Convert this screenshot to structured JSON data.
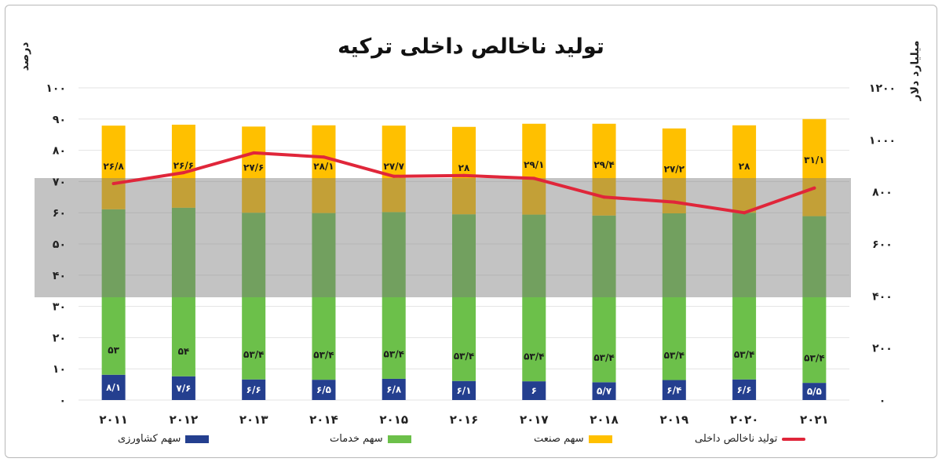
{
  "chart_data": {
    "type": "bar",
    "title": "تولید ناخالص داخلی ترکیه",
    "ylabel_left": "درصد",
    "ylabel_right": "میلیارد دلار",
    "categories": [
      "۲۰۱۱",
      "۲۰۱۲",
      "۲۰۱۳",
      "۲۰۱۴",
      "۲۰۱۵",
      "۲۰۱۶",
      "۲۰۱۷",
      "۲۰۱۸",
      "۲۰۱۹",
      "۲۰۲۰",
      "۲۰۲۱"
    ],
    "y_left_ticks": [
      "۰",
      "۱۰",
      "۲۰",
      "۳۰",
      "۴۰",
      "۵۰",
      "۶۰",
      "۷۰",
      "۸۰",
      "۹۰",
      "۱۰۰"
    ],
    "y_right_ticks": [
      "۰",
      "۲۰۰",
      "۴۰۰",
      "۶۰۰",
      "۸۰۰",
      "۱۰۰۰",
      "۱۲۰۰"
    ],
    "ylim_left": [
      0,
      100
    ],
    "ylim_right": [
      0,
      1200
    ],
    "grid": true,
    "legend_position": "bottom",
    "series": [
      {
        "name": "سهم کشاورزی",
        "type": "stacked-bar",
        "axis": "left",
        "color": "#243f8f",
        "values": [
          8.1,
          7.6,
          6.6,
          6.5,
          6.8,
          6.1,
          6,
          5.7,
          6.4,
          6.6,
          5.5
        ],
        "labels": [
          "۸/۱",
          "۷/۶",
          "۶/۶",
          "۶/۵",
          "۶/۸",
          "۶/۱",
          "۶",
          "۵/۷",
          "۶/۴",
          "۶/۶",
          "۵/۵"
        ]
      },
      {
        "name": "سهم خدمات",
        "type": "stacked-bar",
        "axis": "left",
        "color": "#6cc04a",
        "values": [
          53,
          54,
          53.4,
          53.4,
          53.4,
          53.4,
          53.4,
          53.4,
          53.4,
          53.4,
          53.4
        ],
        "labels": [
          "۵۳",
          "۵۴",
          "۵۳/۴",
          "۵۳/۴",
          "۵۳/۴",
          "۵۳/۴",
          "۵۳/۴",
          "۵۳/۴",
          "۵۳/۴",
          "۵۳/۴",
          "۵۳/۴"
        ]
      },
      {
        "name": "سهم صنعت",
        "type": "stacked-bar",
        "axis": "left",
        "color": "#ffc000",
        "values": [
          26.8,
          26.6,
          27.6,
          28.1,
          27.7,
          28,
          29.1,
          29.4,
          27.2,
          28,
          31.1
        ],
        "labels": [
          "۲۶/۸",
          "۲۶/۶",
          "۲۷/۶",
          "۲۸/۱",
          "۲۷/۷",
          "۲۸",
          "۲۹/۱",
          "۲۹/۴",
          "۲۷/۲",
          "۲۸",
          "۳۱/۱"
        ]
      },
      {
        "name": "تولید ناخالص داخلی",
        "type": "line",
        "axis": "right",
        "color": "#e0263a",
        "values": [
          832,
          874,
          950,
          934,
          860,
          863,
          852,
          780,
          761,
          720,
          815
        ]
      }
    ],
    "legend_order": [
      "تولید ناخالص داخلی",
      "سهم صنعت",
      "سهم خدمات",
      "سهم کشاورزی"
    ]
  }
}
